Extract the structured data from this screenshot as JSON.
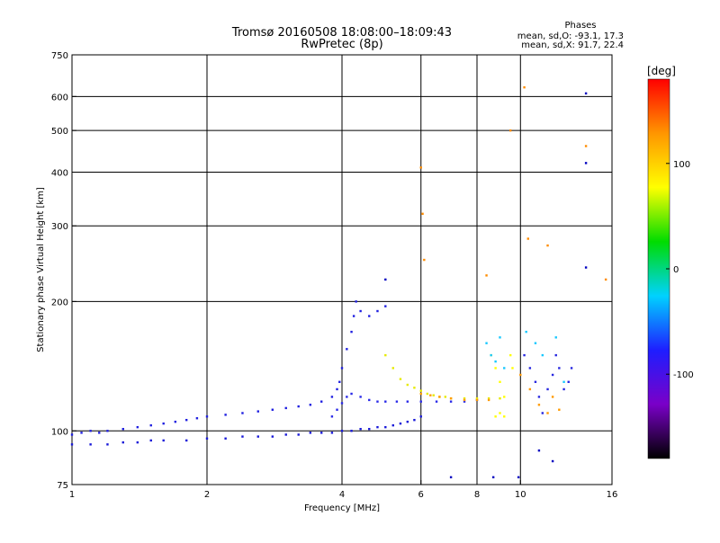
{
  "chart_data": {
    "type": "scatter",
    "title": "Tromsø 20160508 18:08:00–18:09:43",
    "subtitle": "RwPretec (8p)",
    "xlabel": "Frequency [MHz]",
    "ylabel": "Stationary phase Virtual Height [km]",
    "xscale": "log",
    "yscale": "log",
    "xlim": [
      1,
      16
    ],
    "ylim": [
      75,
      750
    ],
    "x_ticks": [
      {
        "value": 1,
        "label": "1"
      },
      {
        "value": 2,
        "label": "2"
      },
      {
        "value": 4,
        "label": "4"
      },
      {
        "value": 6,
        "label": "6"
      },
      {
        "value": 8,
        "label": "8"
      },
      {
        "value": 10,
        "label": "10"
      },
      {
        "value": 16,
        "label": "16"
      }
    ],
    "y_ticks": [
      {
        "value": 75,
        "label": "75"
      },
      {
        "value": 100,
        "label": "100"
      },
      {
        "value": 200,
        "label": "200"
      },
      {
        "value": 300,
        "label": "300"
      },
      {
        "value": 400,
        "label": "400"
      },
      {
        "value": 500,
        "label": "500"
      },
      {
        "value": 600,
        "label": "600"
      },
      {
        "value": 750,
        "label": "750"
      }
    ],
    "grid": true,
    "grid_x": [
      2,
      4,
      6,
      8,
      10
    ],
    "grid_y": [
      100,
      200,
      300,
      400,
      500,
      600
    ],
    "phases": {
      "heading": "Phases",
      "o_line": "mean, sd,O:  -93.1, 17.3",
      "x_line": "mean, sd,X:  91.7, 22.4"
    },
    "colorbar": {
      "label": "[deg]",
      "range": [
        -180,
        180
      ],
      "ticks": [
        {
          "value": 100,
          "label": "100"
        },
        {
          "value": 0,
          "label": "0"
        },
        {
          "value": -100,
          "label": "-100"
        }
      ],
      "colors": [
        "#000000",
        "#7a00c8",
        "#1e1eff",
        "#00d2ff",
        "#00dc00",
        "#ffff00",
        "#ff9600",
        "#ff0000"
      ]
    },
    "series": [
      {
        "points": [
          [
            1.0,
            98
          ],
          [
            1.05,
            99
          ],
          [
            1.1,
            100
          ],
          [
            1.15,
            99
          ],
          [
            1.2,
            100
          ],
          [
            1.3,
            101
          ],
          [
            1.4,
            102
          ],
          [
            1.5,
            103
          ],
          [
            1.6,
            104
          ],
          [
            1.7,
            105
          ],
          [
            1.8,
            106
          ],
          [
            1.9,
            107
          ],
          [
            2.0,
            108
          ],
          [
            2.2,
            109
          ],
          [
            2.4,
            110
          ],
          [
            2.6,
            111
          ],
          [
            2.8,
            112
          ],
          [
            3.0,
            113
          ],
          [
            3.2,
            114
          ],
          [
            3.4,
            115
          ],
          [
            3.6,
            117
          ],
          [
            3.8,
            120
          ],
          [
            3.9,
            125
          ],
          [
            3.95,
            130
          ],
          [
            4.0,
            140
          ],
          [
            4.1,
            155
          ],
          [
            4.2,
            170
          ],
          [
            4.25,
            185
          ],
          [
            4.3,
            200
          ],
          [
            4.4,
            190
          ],
          [
            4.6,
            185
          ],
          [
            4.8,
            190
          ],
          [
            5.0,
            195
          ]
        ],
        "color": "#2020e0"
      },
      {
        "points": [
          [
            1.0,
            93
          ],
          [
            1.1,
            93
          ],
          [
            1.2,
            93
          ],
          [
            1.3,
            94
          ],
          [
            1.4,
            94
          ],
          [
            1.5,
            95
          ],
          [
            1.6,
            95
          ],
          [
            1.8,
            95
          ],
          [
            2.0,
            96
          ],
          [
            2.2,
            96
          ],
          [
            2.4,
            97
          ],
          [
            2.6,
            97
          ],
          [
            2.8,
            97
          ],
          [
            3.0,
            98
          ],
          [
            3.2,
            98
          ],
          [
            3.4,
            99
          ],
          [
            3.6,
            99
          ],
          [
            3.8,
            99
          ],
          [
            4.0,
            100
          ],
          [
            4.2,
            100
          ],
          [
            4.4,
            101
          ],
          [
            4.6,
            101
          ],
          [
            4.8,
            102
          ],
          [
            5.0,
            102
          ],
          [
            5.2,
            103
          ],
          [
            5.4,
            104
          ],
          [
            5.6,
            105
          ],
          [
            5.8,
            106
          ],
          [
            6.0,
            108
          ]
        ],
        "color": "#1818d8"
      },
      {
        "points": [
          [
            3.8,
            108
          ],
          [
            3.9,
            112
          ],
          [
            4.0,
            116
          ],
          [
            4.1,
            120
          ],
          [
            4.2,
            122
          ],
          [
            4.4,
            120
          ],
          [
            4.6,
            118
          ],
          [
            4.8,
            117
          ],
          [
            5.0,
            117
          ],
          [
            5.3,
            117
          ],
          [
            5.6,
            117
          ],
          [
            6.0,
            117
          ],
          [
            6.5,
            117
          ],
          [
            7.0,
            117
          ],
          [
            7.5,
            117
          ],
          [
            8.0,
            118
          ]
        ],
        "color": "#2a2ae8"
      },
      {
        "points": [
          [
            5.0,
            150
          ],
          [
            5.2,
            140
          ],
          [
            5.4,
            132
          ],
          [
            5.6,
            128
          ],
          [
            5.8,
            126
          ],
          [
            6.0,
            124
          ],
          [
            6.2,
            122
          ],
          [
            6.4,
            121
          ],
          [
            6.6,
            120
          ],
          [
            6.8,
            120
          ],
          [
            7.0,
            119
          ],
          [
            7.5,
            119
          ],
          [
            8.0,
            119
          ],
          [
            8.5,
            119
          ],
          [
            9.0,
            119
          ]
        ],
        "color": "#e6ea00"
      },
      {
        "points": [
          [
            6.0,
            122
          ],
          [
            6.3,
            121
          ],
          [
            6.6,
            120
          ],
          [
            7.0,
            119
          ],
          [
            7.5,
            118
          ],
          [
            8.0,
            118
          ],
          [
            8.5,
            118
          ]
        ],
        "color": "#ff9a00"
      },
      {
        "points": [
          [
            8.6,
            150
          ],
          [
            8.8,
            140
          ],
          [
            9.0,
            130
          ],
          [
            9.2,
            120
          ],
          [
            9.0,
            110
          ],
          [
            8.8,
            108
          ],
          [
            9.2,
            108
          ],
          [
            9.5,
            150
          ],
          [
            9.6,
            140
          ]
        ],
        "color": "#ffff00"
      },
      {
        "points": [
          [
            8.4,
            160
          ],
          [
            8.6,
            150
          ],
          [
            8.8,
            145
          ],
          [
            9.0,
            165
          ],
          [
            9.2,
            140
          ]
        ],
        "color": "#18c8ff"
      },
      {
        "points": [
          [
            10.2,
            150
          ],
          [
            10.5,
            140
          ],
          [
            10.8,
            130
          ],
          [
            11.0,
            120
          ],
          [
            11.2,
            110
          ],
          [
            11.5,
            125
          ],
          [
            11.8,
            135
          ],
          [
            12.0,
            150
          ],
          [
            12.2,
            140
          ],
          [
            12.5,
            125
          ],
          [
            12.8,
            130
          ],
          [
            13.0,
            140
          ]
        ],
        "color": "#2828e0"
      },
      {
        "points": [
          [
            10.0,
            135
          ],
          [
            10.5,
            125
          ],
          [
            11.0,
            115
          ],
          [
            11.5,
            110
          ],
          [
            11.8,
            120
          ],
          [
            12.2,
            112
          ]
        ],
        "color": "#ff9a00"
      },
      {
        "points": [
          [
            10.3,
            170
          ],
          [
            10.8,
            160
          ],
          [
            11.2,
            150
          ],
          [
            12.0,
            165
          ],
          [
            12.5,
            130
          ]
        ],
        "color": "#18c8ff"
      },
      {
        "points": [
          [
            6.0,
            410
          ],
          [
            6.05,
            320
          ],
          [
            6.1,
            250
          ],
          [
            9.5,
            500
          ],
          [
            10.2,
            630
          ],
          [
            14.0,
            460
          ],
          [
            15.5,
            225
          ],
          [
            8.4,
            230
          ],
          [
            11.5,
            270
          ],
          [
            10.4,
            280
          ]
        ],
        "color": "#ff8c00"
      },
      {
        "points": [
          [
            14.0,
            610
          ],
          [
            14.0,
            420
          ],
          [
            14.0,
            240
          ],
          [
            5.0,
            225
          ],
          [
            7.0,
            78
          ],
          [
            8.7,
            78
          ],
          [
            9.9,
            78
          ],
          [
            11.0,
            90
          ],
          [
            11.8,
            85
          ]
        ],
        "color": "#0000c0"
      }
    ]
  }
}
